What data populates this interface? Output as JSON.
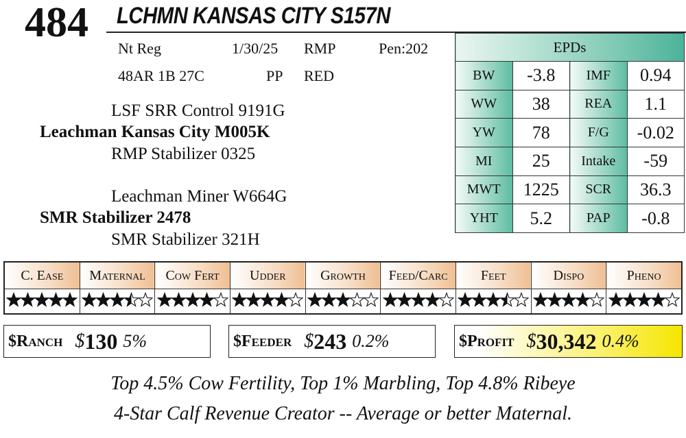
{
  "lot": "484",
  "name": "LCHMN KANSAS CITY S157N",
  "info": {
    "row1": [
      "Nt Reg",
      "1/30/25",
      "RMP",
      "Pen:202"
    ],
    "row2": [
      "48AR 1B 27C",
      "PP",
      "RED"
    ]
  },
  "pedigree": {
    "sire_sire": "LSF SRR Control 9191G",
    "sire": "Leachman Kansas City M005K",
    "sire_dam": "RMP Stabilizer 0325",
    "dam_sire": "Leachman Miner W664G",
    "dam": "SMR Stabilizer 2478",
    "dam_dam": "SMR Stabilizer 321H"
  },
  "epds": {
    "title": "EPDs",
    "rows": [
      [
        "BW",
        "-3.8",
        "IMF",
        "0.94"
      ],
      [
        "WW",
        "38",
        "REA",
        "1.1"
      ],
      [
        "YW",
        "78",
        "F/G",
        "-0.02"
      ],
      [
        "MI",
        "25",
        "Intake",
        "-59"
      ],
      [
        "MWT",
        "1225",
        "SCR",
        "36.3"
      ],
      [
        "YHT",
        "5.2",
        "PAP",
        "-0.8"
      ]
    ]
  },
  "ratings": {
    "headers": [
      "C. Ease",
      "Maternal",
      "Cow Fert",
      "Udder",
      "Growth",
      "Feed/Carc",
      "Feet",
      "Dispo",
      "Pheno"
    ],
    "stars": [
      5,
      3.5,
      4,
      4,
      3,
      4,
      3.5,
      4,
      4
    ],
    "max": 5
  },
  "indexes": [
    {
      "label": "$Ranch",
      "symbol": "$",
      "value": "130",
      "pct": "5%"
    },
    {
      "label": "$Feeder",
      "symbol": "$",
      "value": "243",
      "pct": "0.2%"
    },
    {
      "label": "$Profit",
      "symbol": "$",
      "value": "30,342",
      "pct": "0.4%"
    }
  ],
  "footer": [
    "Top 4.5% Cow Fertility, Top 1% Marbling, Top 4.8% Ribeye",
    "4-Star Calf Revenue Creator -- Average or better Maternal."
  ]
}
